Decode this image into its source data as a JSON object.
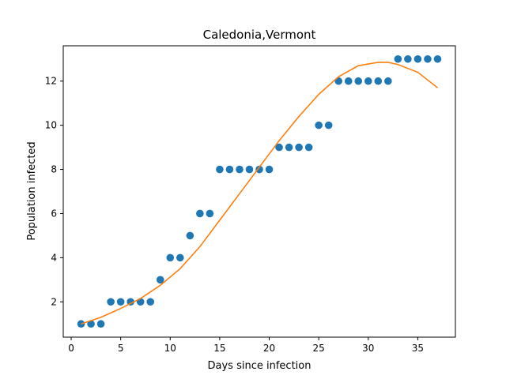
{
  "chart_data": {
    "type": "scatter",
    "title": "Caledonia,Vermont",
    "xlabel": "Days since infection",
    "ylabel": "Population infected",
    "xlim": [
      -0.8,
      38.8
    ],
    "ylim": [
      0.4,
      13.6
    ],
    "xticks": [
      0,
      5,
      10,
      15,
      20,
      25,
      30,
      35
    ],
    "yticks": [
      2,
      4,
      6,
      8,
      10,
      12
    ],
    "grid": false,
    "colors": {
      "points": "#1f77b4",
      "fit": "#ff7f0e"
    },
    "series": [
      {
        "kind": "points",
        "x": [
          1,
          2,
          3,
          4,
          5,
          6,
          7,
          8,
          9,
          10,
          11,
          12,
          13,
          14,
          15,
          16,
          17,
          18,
          19,
          20,
          21,
          22,
          23,
          24,
          25,
          26,
          27,
          28,
          29,
          30,
          31,
          32,
          33,
          34,
          35,
          36,
          37
        ],
        "y": [
          1,
          1,
          1,
          2,
          2,
          2,
          2,
          2,
          3,
          4,
          4,
          5,
          6,
          6,
          8,
          8,
          8,
          8,
          8,
          8,
          9,
          9,
          9,
          9,
          10,
          10,
          12,
          12,
          12,
          12,
          12,
          12,
          13,
          13,
          13,
          13,
          13
        ]
      },
      {
        "kind": "line",
        "x": [
          1,
          3,
          5,
          7,
          9,
          11,
          13,
          15,
          17,
          19,
          21,
          23,
          25,
          27,
          29,
          31,
          32,
          33,
          35,
          37
        ],
        "y": [
          1.0,
          1.3,
          1.7,
          2.15,
          2.75,
          3.5,
          4.5,
          5.7,
          6.9,
          8.1,
          9.3,
          10.4,
          11.4,
          12.2,
          12.7,
          12.85,
          12.85,
          12.75,
          12.4,
          11.7
        ]
      }
    ]
  }
}
